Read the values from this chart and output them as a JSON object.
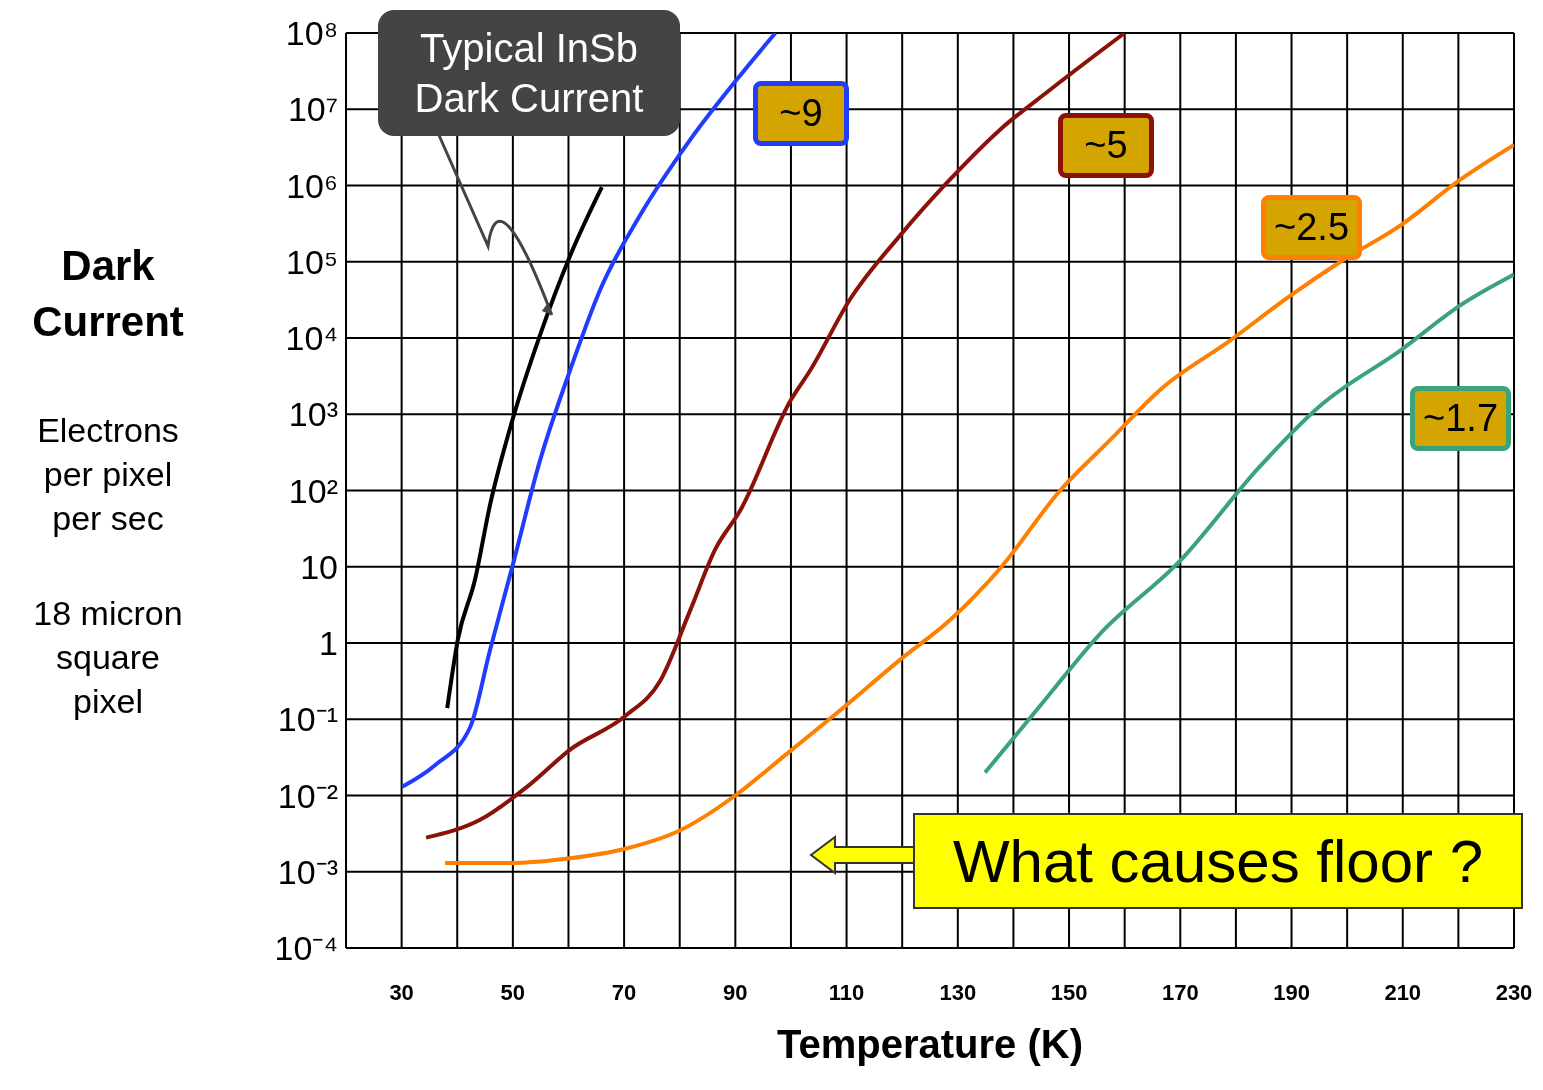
{
  "chart_data": {
    "type": "line",
    "ylabel": "Dark Current",
    "xlabel": "Temperature (K)",
    "xlim": [
      20,
      230
    ],
    "xticks": [
      {
        "value": 30,
        "label": "30"
      },
      {
        "value": 40,
        "label": null
      },
      {
        "value": 50,
        "label": "50"
      },
      {
        "value": 60,
        "label": null
      },
      {
        "value": 70,
        "label": "70"
      },
      {
        "value": 80,
        "label": null
      },
      {
        "value": 90,
        "label": "90"
      },
      {
        "value": 100,
        "label": null
      },
      {
        "value": 110,
        "label": "110"
      },
      {
        "value": 120,
        "label": null
      },
      {
        "value": 130,
        "label": "130"
      },
      {
        "value": 140,
        "label": null
      },
      {
        "value": 150,
        "label": "150"
      },
      {
        "value": 160,
        "label": null
      },
      {
        "value": 170,
        "label": "170"
      },
      {
        "value": 180,
        "label": null
      },
      {
        "value": 190,
        "label": "190"
      },
      {
        "value": 200,
        "label": null
      },
      {
        "value": 210,
        "label": "210"
      },
      {
        "value": 220,
        "label": null
      },
      {
        "value": 230,
        "label": "230"
      }
    ],
    "ylim": [
      0.0001,
      100000000
    ],
    "yticks": [
      {
        "value": 0.0001,
        "label": "10⁻⁴"
      },
      {
        "value": 0.001,
        "label": "10⁻³"
      },
      {
        "value": 0.01,
        "label": "10⁻²"
      },
      {
        "value": 0.1,
        "label": "10⁻¹"
      },
      1,
      10,
      {
        "value": 100,
        "label": "10²"
      },
      {
        "value": 1000,
        "label": "10³"
      },
      {
        "value": 10000,
        "label": "10⁴"
      },
      {
        "value": 100000,
        "label": "10⁵"
      },
      {
        "value": 1000000,
        "label": "10⁶"
      },
      {
        "value": 10000000,
        "label": "10⁷"
      },
      {
        "value": 100000000,
        "label": "10⁸"
      }
    ],
    "log": "y",
    "grid": true,
    "legend": false,
    "marker": "none",
    "line_style": "solid",
    "series": [
      {
        "color": "#000000",
        "x": [
          38.2,
          40.1,
          43.2,
          45.9,
          49.9,
          54.9,
          60.3,
          66.0
        ],
        "values": [
          0.14,
          1.1,
          6.8,
          65,
          830,
          11000,
          120000,
          950000
        ]
      },
      {
        "color": "#1f3cff",
        "x": [
          30.1,
          36.0,
          42.3,
          45.9,
          49.9,
          54.9,
          60.3,
          65.7,
          72.9,
          81.9,
          90.9,
          97.2
        ],
        "values": [
          0.013,
          0.025,
          0.078,
          0.81,
          10,
          250,
          3800,
          43000,
          410000,
          4000000,
          28000000,
          100000000
        ]
      },
      {
        "color": "#8b1208",
        "x": [
          34.4,
          44.1,
          53.1,
          60.3,
          70.2,
          76.5,
          81.9,
          86.4,
          90.9,
          99.9,
          103.5,
          110.6,
          119.6,
          128.6,
          137.6,
          146.6,
          160
        ],
        "values": [
          0.0028,
          0.0048,
          0.014,
          0.04,
          0.11,
          0.32,
          2.7,
          17,
          55,
          1500,
          3800,
          32000,
          220000,
          1200000,
          5400000,
          18000000,
          100000000
        ]
      },
      {
        "color": "#ff7f00",
        "x": [
          37.8,
          49.5,
          60.3,
          70.2,
          80.1,
          90,
          98.1,
          108.8,
          119.6,
          128.6,
          137.6,
          148.4,
          157.4,
          166.4,
          179,
          189.8,
          198.8,
          209.6,
          220.4,
          230
        ],
        "values": [
          0.0013,
          0.0013,
          0.0015,
          0.002,
          0.0035,
          0.01,
          0.03,
          0.13,
          0.6,
          2,
          9.5,
          100,
          460,
          2100,
          9300,
          36000,
          100000,
          300000,
          1200000,
          3400000
        ]
      },
      {
        "color": "#3aa37a",
        "x": [
          134.9,
          144.8,
          155.5,
          170,
          184.4,
          195.2,
          209.6,
          220.4,
          230
        ],
        "values": [
          0.02,
          0.15,
          1.3,
          12,
          210,
          1300,
          6900,
          27000,
          68000
        ]
      }
    ],
    "annotations": [
      {
        "text": "Typical InSb Dark Current",
        "x": 57,
        "y": 20000
      },
      "~9",
      "~5",
      "~2.5",
      "~1.7",
      "What causes floor ?",
      "Electrons per pixel per sec",
      "18 micron square pixel"
    ]
  }
}
